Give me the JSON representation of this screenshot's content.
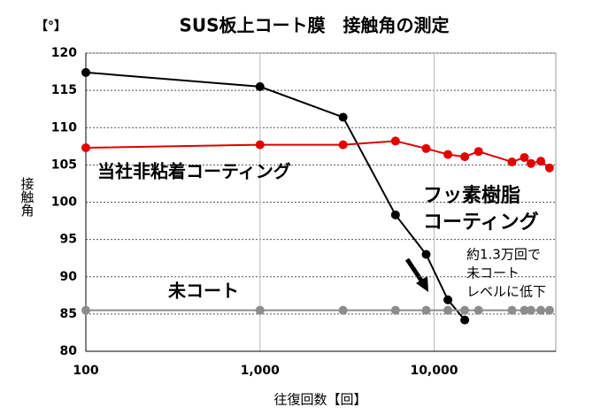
{
  "chart_data": {
    "type": "line",
    "title": "SUS板上コート膜　接触角の測定",
    "y_unit": "【°】",
    "y_label": "接触角",
    "x_label": "往復回数【回】",
    "x_log": true,
    "grid": true,
    "xlim": [
      100,
      50000
    ],
    "ylim": [
      80,
      120
    ],
    "xticks": [
      100,
      {
        "value": 1000,
        "label": "1,000"
      },
      {
        "value": 10000,
        "label": "10,000"
      }
    ],
    "yticks": [
      80,
      85,
      90,
      95,
      100,
      105,
      110,
      115,
      120
    ],
    "series": [
      {
        "name": [
          "フッ素樹脂",
          "コーティング"
        ],
        "color": "#000000",
        "x": [
          100,
          1000,
          3000,
          6000,
          9000,
          12000,
          15000
        ],
        "values": [
          117.4,
          115.5,
          111.4,
          98.3,
          93,
          86.9,
          84.2
        ]
      },
      {
        "name": [
          "当社非粘着コーティング"
        ],
        "color": "#e00000",
        "x": [
          100,
          1000,
          3000,
          6000,
          9000,
          12000,
          15000,
          18000,
          28000,
          33000,
          36000,
          41000,
          46000
        ],
        "values": [
          107.3,
          107.7,
          107.7,
          108.2,
          107.2,
          106.4,
          106.1,
          106.8,
          105.4,
          106,
          105.2,
          105.5,
          104.6
        ]
      },
      {
        "name": [
          "未コート"
        ],
        "color": "#8c8c8c",
        "x": [
          100,
          1000,
          3000,
          6000,
          9000,
          12000,
          15000,
          18000,
          28000,
          33000,
          36000,
          41000,
          46000
        ],
        "values": [
          85.5,
          85.5,
          85.5,
          85.5,
          85.5,
          85.5,
          85.5,
          85.5,
          85.5,
          85.5,
          85.5,
          85.5,
          85.5
        ]
      }
    ],
    "annotation": [
      "約1.3万回で",
      "未コート",
      "レベルに低下"
    ]
  }
}
